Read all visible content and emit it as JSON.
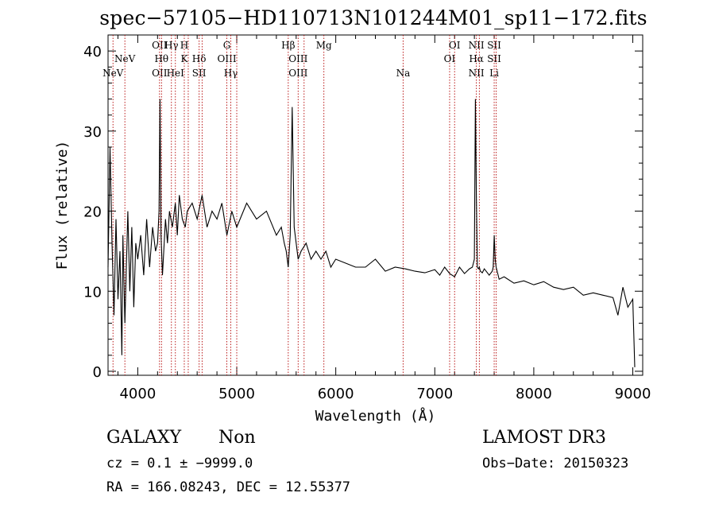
{
  "title": "spec−57105−HD110713N101244M01_sp11−172.fits",
  "info": {
    "classification": "GALAXY",
    "subclass": "Non",
    "survey": "LAMOST DR3",
    "redshift_text": "cz = 0.1 ± −9999.0",
    "obs_date_text": "Obs−Date: 20150323",
    "coords_text": "RA = 166.08243, DEC =  12.55377"
  },
  "chart_data": {
    "type": "line",
    "title": "spec−57105−HD110713N101244M01_sp11−172.fits",
    "xlabel": "Wavelength (Å)",
    "ylabel": "Flux (relative)",
    "xlim": [
      3700,
      9100
    ],
    "ylim": [
      -0.5,
      42
    ],
    "x_ticks": [
      4000,
      5000,
      6000,
      7000,
      8000,
      9000
    ],
    "y_ticks": [
      0,
      10,
      20,
      30,
      40
    ],
    "grid": false,
    "series": [
      {
        "color": "#000000",
        "x": [
          3700,
          3720,
          3740,
          3760,
          3780,
          3800,
          3820,
          3840,
          3850,
          3870,
          3900,
          3920,
          3940,
          3960,
          3980,
          4000,
          4030,
          4060,
          4090,
          4120,
          4150,
          4180,
          4200,
          4215,
          4225,
          4235,
          4250,
          4280,
          4300,
          4320,
          4350,
          4380,
          4400,
          4420,
          4450,
          4480,
          4500,
          4550,
          4600,
          4650,
          4700,
          4750,
          4800,
          4850,
          4900,
          4950,
          5000,
          5100,
          5200,
          5300,
          5400,
          5450,
          5480,
          5500,
          5520,
          5540,
          5560,
          5580,
          5600,
          5620,
          5650,
          5700,
          5750,
          5800,
          5850,
          5900,
          5950,
          6000,
          6100,
          6200,
          6300,
          6400,
          6500,
          6600,
          6700,
          6800,
          6900,
          7000,
          7050,
          7100,
          7150,
          7200,
          7250,
          7300,
          7350,
          7380,
          7400,
          7410,
          7420,
          7430,
          7440,
          7450,
          7460,
          7480,
          7500,
          7550,
          7580,
          7590,
          7600,
          7610,
          7620,
          7650,
          7700,
          7800,
          7900,
          8000,
          8100,
          8200,
          8300,
          8400,
          8500,
          8600,
          8700,
          8800,
          8850,
          8900,
          8950,
          9000,
          9020
        ],
        "y": [
          13,
          28,
          16,
          7,
          19,
          9,
          15,
          2,
          17,
          6,
          20,
          10,
          18,
          8,
          16,
          14,
          17,
          12,
          19,
          13,
          18,
          15,
          16,
          20,
          34,
          17,
          12,
          19,
          16,
          20,
          18,
          21,
          17,
          22,
          19,
          18,
          20,
          21,
          19,
          22,
          18,
          20,
          19,
          21,
          17,
          20,
          18,
          21,
          19,
          20,
          17,
          18,
          16,
          15,
          13,
          17,
          33,
          18,
          16,
          14,
          15,
          16,
          14,
          15,
          14,
          15,
          13,
          14,
          13.5,
          13,
          13,
          14,
          12.5,
          13,
          12.8,
          12.5,
          12.3,
          12.7,
          12,
          13,
          12.2,
          11.8,
          13,
          12.2,
          12.8,
          13,
          14,
          34,
          22,
          13,
          12.8,
          13,
          12.5,
          12.3,
          12.8,
          12,
          12.5,
          13,
          17,
          14,
          13,
          11.5,
          11.8,
          11,
          11.3,
          10.8,
          11.2,
          10.5,
          10.2,
          10.5,
          9.5,
          9.8,
          9.5,
          9.2,
          7,
          10.5,
          8,
          9,
          0.5
        ]
      }
    ],
    "line_markers": [
      {
        "x": 3750,
        "labels": [
          "NeV"
        ],
        "rows": [
          3
        ]
      },
      {
        "x": 3870,
        "labels": [
          "NeV"
        ],
        "rows": [
          2
        ]
      },
      {
        "x": 4220,
        "labels": [
          "OII",
          "OII"
        ],
        "rows": [
          1,
          3
        ]
      },
      {
        "x": 4340,
        "labels": [
          "Hγ"
        ],
        "rows": [
          1
        ]
      },
      {
        "x": 4240,
        "labels": [
          "Hθ"
        ],
        "rows": [
          2
        ]
      },
      {
        "x": 4380,
        "labels": [
          "HeI"
        ],
        "rows": [
          3
        ]
      },
      {
        "x": 4470,
        "labels": [
          "H",
          "K"
        ],
        "rows": [
          1,
          2
        ]
      },
      {
        "x": 4510,
        "labels": [
          ""
        ],
        "rows": [
          0
        ]
      },
      {
        "x": 4620,
        "labels": [
          "Hδ",
          "SII"
        ],
        "rows": [
          2,
          3
        ]
      },
      {
        "x": 4650,
        "labels": [
          ""
        ],
        "rows": [
          0
        ]
      },
      {
        "x": 4900,
        "labels": [
          "G",
          "OIII"
        ],
        "rows": [
          1,
          2
        ]
      },
      {
        "x": 4940,
        "labels": [
          "Hγ"
        ],
        "rows": [
          3
        ]
      },
      {
        "x": 5000,
        "labels": [
          ""
        ],
        "rows": [
          0
        ]
      },
      {
        "x": 5520,
        "labels": [
          "Hβ"
        ],
        "rows": [
          1
        ]
      },
      {
        "x": 5620,
        "labels": [
          "OIII",
          "OIII"
        ],
        "rows": [
          2,
          3
        ]
      },
      {
        "x": 5680,
        "labels": [
          ""
        ],
        "rows": [
          0
        ]
      },
      {
        "x": 5880,
        "labels": [
          "Mg"
        ],
        "rows": [
          1
        ]
      },
      {
        "x": 6680,
        "labels": [
          "Na"
        ],
        "rows": [
          3
        ]
      },
      {
        "x": 7150,
        "labels": [
          "OI"
        ],
        "rows": [
          2
        ]
      },
      {
        "x": 7200,
        "labels": [
          "OI"
        ],
        "rows": [
          1
        ]
      },
      {
        "x": 7420,
        "labels": [
          "NII",
          "Hα",
          "NII"
        ],
        "rows": [
          1,
          2,
          3
        ]
      },
      {
        "x": 7450,
        "labels": [
          ""
        ],
        "rows": [
          0
        ]
      },
      {
        "x": 7600,
        "labels": [
          "SII",
          "SII",
          "Li"
        ],
        "rows": [
          1,
          2,
          3
        ]
      },
      {
        "x": 7620,
        "labels": [
          ""
        ],
        "rows": [
          0
        ]
      }
    ]
  }
}
